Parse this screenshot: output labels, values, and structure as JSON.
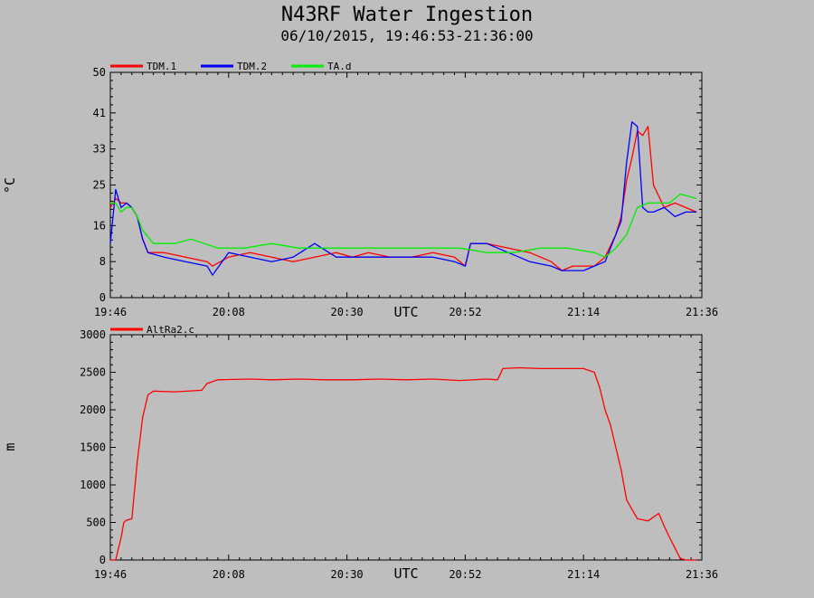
{
  "header": {
    "title": "N43RF Water Ingestion",
    "subtitle": "06/10/2015, 19:46:53-21:36:00"
  },
  "colors": {
    "background": "#bebebe",
    "TDM.1": "#ff0000",
    "TDM.2": "#0000ff",
    "TA.d": "#00ee00",
    "AltRa2.c": "#ff0000"
  },
  "chart_data": [
    {
      "type": "line",
      "ylabel": "°C",
      "xlabel": "UTC",
      "xlim": [
        "19:46",
        "21:36"
      ],
      "ylim": [
        0,
        50
      ],
      "x_ticks": [
        "19:46",
        "20:08",
        "20:30",
        "20:52",
        "21:14",
        "21:36"
      ],
      "y_ticks": [
        "0",
        "8",
        "16",
        "25",
        "33",
        "41",
        "50"
      ],
      "grid": false,
      "legend": "top-left",
      "series": [
        {
          "name": "TDM.1",
          "color": "#ff0000",
          "x_minutes": [
            0,
            1,
            2,
            3,
            4,
            5,
            6,
            7,
            10,
            14,
            18,
            19,
            22,
            26,
            30,
            34,
            38,
            42,
            45,
            48,
            52,
            56,
            60,
            64,
            66,
            67,
            70,
            74,
            78,
            82,
            84,
            86,
            88,
            90,
            92,
            94,
            95,
            96,
            97,
            98,
            99,
            100,
            101,
            103,
            105,
            107,
            109
          ],
          "values": [
            20,
            22,
            21,
            21,
            20,
            18,
            13,
            10,
            10,
            9,
            8,
            7,
            9,
            10,
            9,
            8,
            9,
            10,
            9,
            10,
            9,
            9,
            10,
            9,
            7,
            12,
            12,
            11,
            10,
            8,
            6,
            7,
            7,
            7,
            9,
            14,
            18,
            26,
            31,
            37,
            36,
            38,
            25,
            20,
            21,
            20,
            19
          ]
        },
        {
          "name": "TDM.2",
          "color": "#0000ff",
          "x_minutes": [
            0,
            1,
            2,
            3,
            4,
            5,
            6,
            7,
            10,
            14,
            18,
            19,
            22,
            26,
            30,
            34,
            38,
            42,
            45,
            48,
            52,
            56,
            60,
            64,
            66,
            67,
            70,
            74,
            78,
            82,
            84,
            86,
            88,
            90,
            92,
            94,
            95,
            96,
            97,
            98,
            99,
            100,
            101,
            103,
            105,
            107,
            109
          ],
          "values": [
            12,
            24,
            20,
            21,
            20,
            18,
            13,
            10,
            9,
            8,
            7,
            5,
            10,
            9,
            8,
            9,
            12,
            9,
            9,
            9,
            9,
            9,
            9,
            8,
            7,
            12,
            12,
            10,
            8,
            7,
            6,
            6,
            6,
            7,
            8,
            14,
            17,
            30,
            39,
            38,
            20,
            19,
            19,
            20,
            18,
            19,
            19
          ]
        },
        {
          "name": "TA.d",
          "color": "#00ee00",
          "x_minutes": [
            0,
            1,
            2,
            3,
            4,
            5,
            6,
            8,
            12,
            15,
            20,
            25,
            30,
            35,
            40,
            45,
            50,
            55,
            60,
            65,
            70,
            75,
            80,
            85,
            90,
            92,
            94,
            96,
            98,
            100,
            102,
            104,
            106,
            109
          ],
          "values": [
            21,
            21,
            19,
            20,
            20,
            18,
            15,
            12,
            12,
            13,
            11,
            11,
            12,
            11,
            11,
            11,
            11,
            11,
            11,
            11,
            10,
            10,
            11,
            11,
            10,
            9,
            11,
            14,
            20,
            21,
            21,
            21,
            23,
            22
          ]
        }
      ]
    },
    {
      "type": "line",
      "ylabel": "m",
      "xlabel": "UTC",
      "xlim": [
        "19:46",
        "21:36"
      ],
      "ylim": [
        0,
        3000
      ],
      "x_ticks": [
        "19:46",
        "20:08",
        "20:30",
        "20:52",
        "21:14",
        "21:36"
      ],
      "y_ticks": [
        "0",
        "500",
        "1000",
        "1500",
        "2000",
        "2500",
        "3000"
      ],
      "grid": false,
      "legend": "top-left",
      "series": [
        {
          "name": "AltRa2.c",
          "color": "#ff0000",
          "x_minutes": [
            0,
            1,
            2,
            2.5,
            3,
            4,
            5,
            6,
            7,
            8,
            12,
            17,
            18,
            20,
            26,
            30,
            35,
            40,
            45,
            50,
            55,
            60,
            65,
            70,
            72,
            73,
            76,
            80,
            85,
            88,
            90,
            91,
            92,
            93,
            94,
            95,
            96,
            98,
            100,
            102,
            103,
            104,
            106,
            107,
            109
          ],
          "values": [
            0,
            0,
            300,
            500,
            530,
            550,
            1300,
            1900,
            2200,
            2250,
            2240,
            2260,
            2350,
            2400,
            2410,
            2400,
            2410,
            2400,
            2400,
            2410,
            2400,
            2410,
            2390,
            2410,
            2400,
            2550,
            2560,
            2550,
            2550,
            2550,
            2500,
            2300,
            2000,
            1800,
            1500,
            1200,
            800,
            550,
            520,
            620,
            450,
            300,
            20,
            0,
            0
          ]
        }
      ]
    }
  ]
}
